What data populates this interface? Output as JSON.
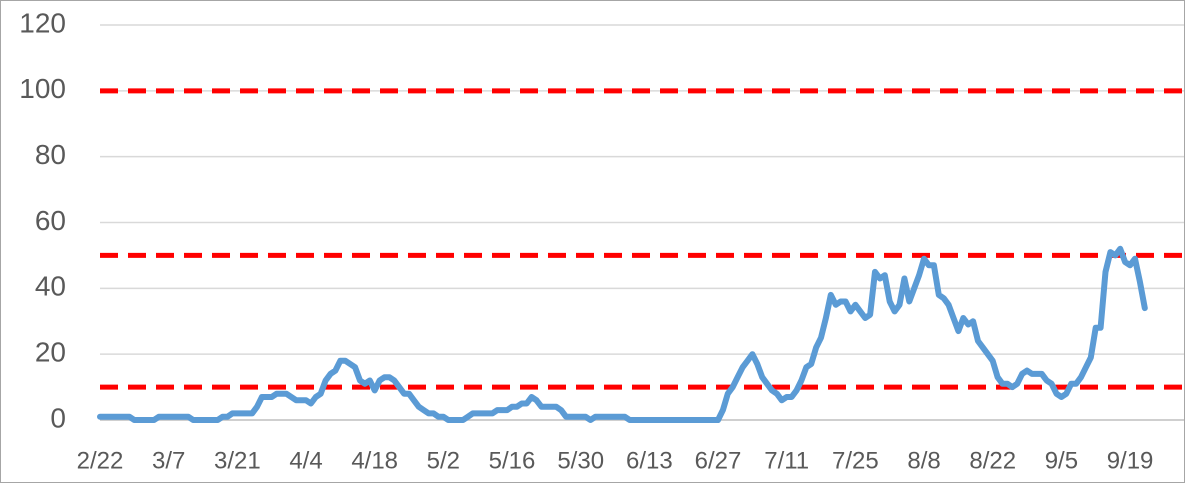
{
  "chart_data": {
    "type": "line",
    "categories": [
      "2/22",
      null,
      null,
      null,
      null,
      null,
      null,
      null,
      null,
      null,
      null,
      null,
      null,
      null,
      "3/7",
      null,
      null,
      null,
      null,
      null,
      null,
      null,
      null,
      null,
      null,
      null,
      null,
      null,
      "3/21",
      null,
      null,
      null,
      null,
      null,
      null,
      null,
      null,
      null,
      null,
      null,
      null,
      null,
      "4/4",
      null,
      null,
      null,
      null,
      null,
      null,
      null,
      null,
      null,
      null,
      null,
      null,
      null,
      "4/18",
      null,
      null,
      null,
      null,
      null,
      null,
      null,
      null,
      null,
      null,
      null,
      null,
      null,
      "5/2",
      null,
      null,
      null,
      null,
      null,
      null,
      null,
      null,
      null,
      null,
      null,
      null,
      null,
      "5/16",
      null,
      null,
      null,
      null,
      null,
      null,
      null,
      null,
      null,
      null,
      null,
      null,
      null,
      "5/30",
      null,
      null,
      null,
      null,
      null,
      null,
      null,
      null,
      null,
      null,
      null,
      null,
      null,
      "6/13",
      null,
      null,
      null,
      null,
      null,
      null,
      null,
      null,
      null,
      null,
      null,
      null,
      null,
      "6/27",
      null,
      null,
      null,
      null,
      null,
      null,
      null,
      null,
      null,
      null,
      null,
      null,
      null,
      "7/11",
      null,
      null,
      null,
      null,
      null,
      null,
      null,
      null,
      null,
      null,
      null,
      null,
      null,
      "7/25",
      null,
      null,
      null,
      null,
      null,
      null,
      null,
      null,
      null,
      null,
      null,
      null,
      null,
      "8/8",
      null,
      null,
      null,
      null,
      null,
      null,
      null,
      null,
      null,
      null,
      null,
      null,
      null,
      "8/22",
      null,
      null,
      null,
      null,
      null,
      null,
      null,
      null,
      null,
      null,
      null,
      null,
      null,
      "9/5",
      null,
      null,
      null,
      null,
      null,
      null,
      null,
      null,
      null,
      null,
      null,
      null,
      null,
      "9/19",
      null,
      null,
      null
    ],
    "values": [
      1,
      1,
      1,
      1,
      1,
      1,
      1,
      0,
      0,
      0,
      0,
      0,
      1,
      1,
      1,
      1,
      1,
      1,
      1,
      0,
      0,
      0,
      0,
      0,
      0,
      1,
      1,
      2,
      2,
      2,
      2,
      2,
      4,
      7,
      7,
      7,
      8,
      8,
      8,
      7,
      6,
      6,
      6,
      5,
      7,
      8,
      12,
      14,
      15,
      18,
      18,
      17,
      16,
      12,
      11,
      12,
      9,
      12,
      13,
      13,
      12,
      10,
      8,
      8,
      6,
      4,
      3,
      2,
      2,
      1,
      1,
      0,
      0,
      0,
      0,
      1,
      2,
      2,
      2,
      2,
      2,
      3,
      3,
      3,
      4,
      4,
      5,
      5,
      7,
      6,
      4,
      4,
      4,
      4,
      3,
      1,
      1,
      1,
      1,
      1,
      0,
      1,
      1,
      1,
      1,
      1,
      1,
      1,
      0,
      0,
      0,
      0,
      0,
      0,
      0,
      0,
      0,
      0,
      0,
      0,
      0,
      0,
      0,
      0,
      0,
      0,
      0,
      3,
      8,
      10,
      13,
      16,
      18,
      20,
      17,
      13,
      11,
      9,
      8,
      6,
      7,
      7,
      9,
      12,
      16,
      17,
      22,
      25,
      31,
      38,
      35,
      36,
      36,
      33,
      35,
      33,
      31,
      32,
      45,
      43,
      44,
      36,
      33,
      35,
      43,
      36,
      40,
      44,
      49,
      47,
      47,
      38,
      37,
      35,
      31,
      27,
      31,
      29,
      30,
      24,
      22,
      20,
      18,
      13,
      11,
      11,
      10,
      11,
      14,
      15,
      14,
      14,
      14,
      12,
      11,
      8,
      7,
      8,
      11,
      11,
      13,
      16,
      19,
      28,
      28,
      45,
      51,
      50,
      52,
      48,
      47,
      49,
      42,
      34
    ],
    "color": "#5b9bd5",
    "reference_lines": [
      10,
      50,
      100
    ],
    "reference_color": "#ff0000",
    "ylim": [
      0,
      120
    ],
    "yticks": [
      0,
      20,
      40,
      60,
      80,
      100,
      120
    ],
    "grid": true
  }
}
